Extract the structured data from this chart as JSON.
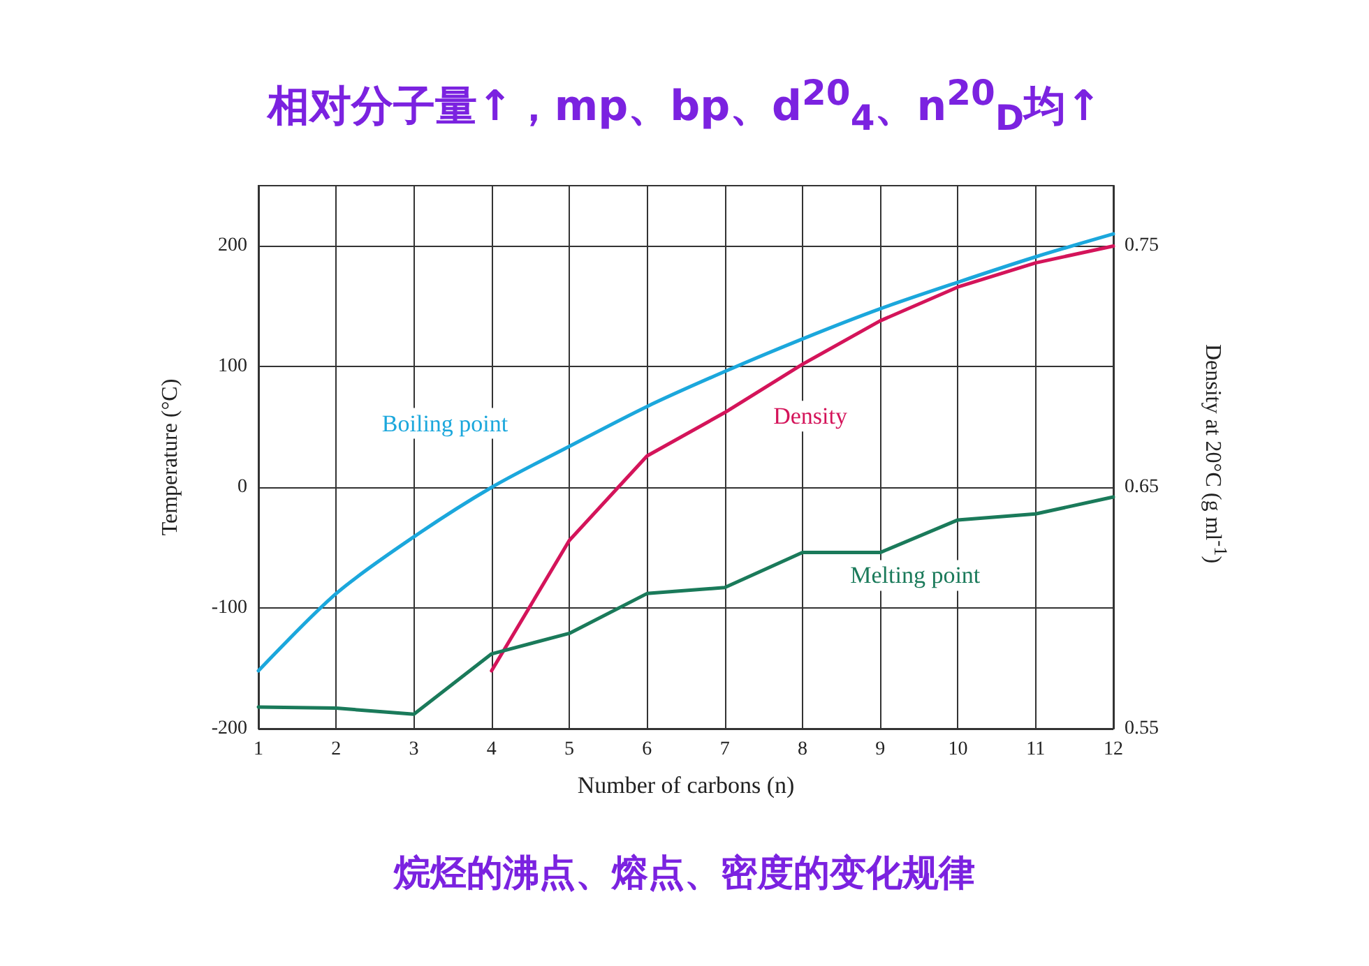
{
  "chart_data": {
    "type": "line",
    "title": "相对分子量↑，mp、bp、d$^{20}$$_{4}$、n$^{20}$$_{D}$均↑",
    "xlabel": "Number of carbons (n)",
    "ylabel": "Temperature (°C)",
    "y2label": "Density at 20°C (g ml$^{-1}$)",
    "x": [
      1,
      2,
      3,
      4,
      5,
      6,
      7,
      8,
      9,
      10,
      11,
      12
    ],
    "series": [
      {
        "color": "#1ba7dc",
        "values": [
          -152,
          -88,
          -41,
          0,
          34,
          67,
          96,
          123,
          148,
          170,
          191,
          210
        ]
      },
      {
        "color": "#d4145a",
        "axis": "y2",
        "values": [
          null,
          null,
          null,
          0.574,
          0.628,
          0.663,
          0.681,
          0.701,
          0.719,
          0.733,
          0.743,
          0.75
        ]
      },
      {
        "color": "#1a7a5a",
        "values": [
          -182,
          -183,
          -188,
          -138,
          -121,
          -88,
          -83,
          -54,
          -54,
          -27,
          -22,
          -8
        ]
      }
    ],
    "annotations": [
      "Boiling point",
      "Density",
      "Melting point",
      "烷烃的沸点、熔点、密度的变化规律"
    ],
    "xlim": [
      1,
      12
    ],
    "xticks": [
      1,
      2,
      3,
      4,
      5,
      6,
      7,
      8,
      9,
      10,
      11,
      12
    ],
    "ylim": [
      -200,
      250
    ],
    "yticks": [
      -200,
      -100,
      0,
      100,
      200
    ],
    "y2lim": [
      0.55,
      0.775
    ],
    "y2ticks": [
      0.55,
      0.65,
      0.75
    ],
    "grid": true,
    "marker": "none",
    "line_style": "solid"
  }
}
